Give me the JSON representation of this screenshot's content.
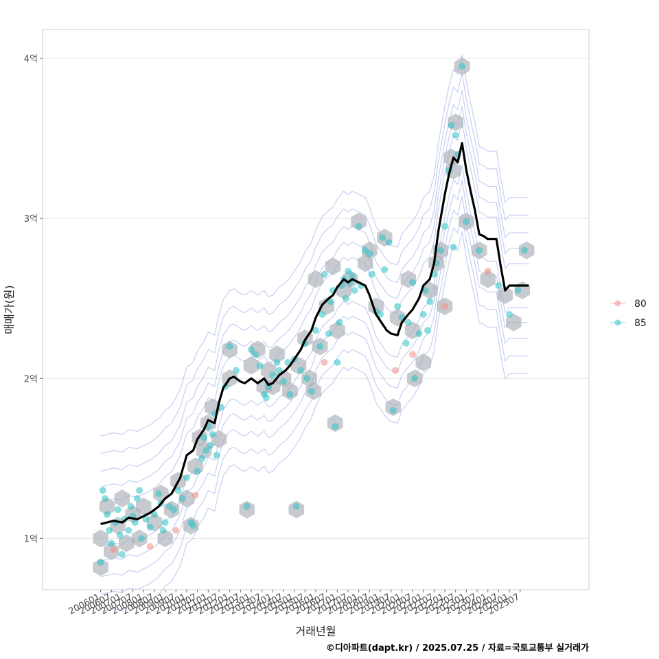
{
  "chart_data": {
    "type": "scatter",
    "xlabel": "거래년월",
    "ylabel": "매매가(원)",
    "caption": "©디아파트(dapt.kr) / 2025.07.25 / 자료=국토교통부 실거래가",
    "x_ticks": [
      "200601",
      "200607",
      "200701",
      "200707",
      "200801",
      "200807",
      "200901",
      "200907",
      "201001",
      "201007",
      "201101",
      "201107",
      "201201",
      "201207",
      "201301",
      "201307",
      "201401",
      "201407",
      "201501",
      "201507",
      "201601",
      "201607",
      "201701",
      "201707",
      "201801",
      "201807",
      "201901",
      "201907",
      "202001",
      "202007",
      "202101",
      "202107",
      "202201",
      "202207",
      "202301",
      "202307",
      "202401",
      "202407",
      "202501",
      "202507"
    ],
    "y_ticks": [
      {
        "value": 1,
        "label": "1억"
      },
      {
        "value": 2,
        "label": "2억"
      },
      {
        "value": 3,
        "label": "3억"
      },
      {
        "value": 4,
        "label": "4억"
      }
    ],
    "xlim": [
      2003.3,
      2028.7
    ],
    "ylim": [
      0.68,
      4.18
    ],
    "grid": true,
    "legend_position": "right",
    "colors": {
      "line": "#000000",
      "series_80": "#f28e86",
      "series_85": "#2ec4c7",
      "hex": "#a9afb6",
      "contour": "#97a7e6",
      "panel_border": "#cccccc",
      "grid": "#e5e5e5"
    },
    "series": [
      {
        "name": "80",
        "points": [
          [
            2006.6,
            0.93
          ],
          [
            2008.3,
            0.95
          ],
          [
            2009.5,
            1.05
          ],
          [
            2010.4,
            1.27
          ],
          [
            2016.4,
            2.1
          ],
          [
            2019.7,
            2.05
          ],
          [
            2020.5,
            2.15
          ],
          [
            2022.0,
            2.45
          ],
          [
            2024.0,
            2.67
          ]
        ]
      },
      {
        "name": "85",
        "points": [
          [
            2006.0,
            0.85
          ],
          [
            2006.1,
            1.3
          ],
          [
            2006.2,
            1.25
          ],
          [
            2006.3,
            1.15
          ],
          [
            2006.4,
            1.05
          ],
          [
            2006.5,
            0.97
          ],
          [
            2006.7,
            1.1
          ],
          [
            2006.8,
            1.18
          ],
          [
            2006.9,
            1.02
          ],
          [
            2007.0,
            0.9
          ],
          [
            2007.1,
            1.12
          ],
          [
            2007.3,
            1.05
          ],
          [
            2007.4,
            1.2
          ],
          [
            2007.5,
            1.14
          ],
          [
            2007.6,
            1.1
          ],
          [
            2007.7,
            1.25
          ],
          [
            2007.8,
            1.3
          ],
          [
            2007.9,
            1.0
          ],
          [
            2008.1,
            1.12
          ],
          [
            2008.3,
            1.07
          ],
          [
            2008.5,
            1.15
          ],
          [
            2008.7,
            1.28
          ],
          [
            2008.8,
            1.22
          ],
          [
            2008.9,
            1.05
          ],
          [
            2009.0,
            1.1
          ],
          [
            2009.2,
            1.2
          ],
          [
            2009.4,
            1.18
          ],
          [
            2009.6,
            1.3
          ],
          [
            2009.8,
            1.25
          ],
          [
            2010.0,
            1.38
          ],
          [
            2010.2,
            1.1
          ],
          [
            2010.3,
            1.08
          ],
          [
            2010.5,
            1.42
          ],
          [
            2010.7,
            1.5
          ],
          [
            2010.8,
            1.63
          ],
          [
            2010.9,
            1.55
          ],
          [
            2011.0,
            1.7
          ],
          [
            2011.1,
            1.58
          ],
          [
            2011.2,
            1.65
          ],
          [
            2011.3,
            1.78
          ],
          [
            2011.4,
            1.52
          ],
          [
            2011.6,
            1.82
          ],
          [
            2011.8,
            1.95
          ],
          [
            2012.0,
            2.2
          ],
          [
            2012.3,
            2.05
          ],
          [
            2012.8,
            1.2
          ],
          [
            2013.0,
            2.18
          ],
          [
            2013.2,
            2.15
          ],
          [
            2013.4,
            2.08
          ],
          [
            2013.6,
            1.9
          ],
          [
            2013.7,
            1.88
          ],
          [
            2013.8,
            1.95
          ],
          [
            2014.0,
            2.02
          ],
          [
            2014.2,
            2.1
          ],
          [
            2014.3,
            2.05
          ],
          [
            2014.5,
            1.98
          ],
          [
            2014.7,
            2.1
          ],
          [
            2014.8,
            1.9
          ],
          [
            2015.0,
            2.12
          ],
          [
            2015.1,
            1.2
          ],
          [
            2015.3,
            2.05
          ],
          [
            2015.5,
            2.22
          ],
          [
            2015.6,
            2.0
          ],
          [
            2015.8,
            1.92
          ],
          [
            2016.0,
            2.3
          ],
          [
            2016.2,
            2.2
          ],
          [
            2016.3,
            2.4
          ],
          [
            2016.4,
            2.65
          ],
          [
            2016.6,
            2.28
          ],
          [
            2016.7,
            2.48
          ],
          [
            2016.8,
            2.55
          ],
          [
            2016.9,
            1.7
          ],
          [
            2017.0,
            2.1
          ],
          [
            2017.1,
            2.35
          ],
          [
            2017.2,
            2.58
          ],
          [
            2017.3,
            2.62
          ],
          [
            2017.4,
            2.5
          ],
          [
            2017.5,
            2.67
          ],
          [
            2017.6,
            2.6
          ],
          [
            2017.7,
            2.64
          ],
          [
            2017.8,
            2.55
          ],
          [
            2018.0,
            2.95
          ],
          [
            2018.1,
            2.58
          ],
          [
            2018.3,
            2.8
          ],
          [
            2018.5,
            2.78
          ],
          [
            2018.6,
            2.65
          ],
          [
            2018.8,
            2.42
          ],
          [
            2019.0,
            2.4
          ],
          [
            2019.1,
            2.88
          ],
          [
            2019.2,
            2.68
          ],
          [
            2019.4,
            2.85
          ],
          [
            2019.6,
            1.8
          ],
          [
            2019.8,
            2.45
          ],
          [
            2020.0,
            2.38
          ],
          [
            2020.2,
            2.22
          ],
          [
            2020.3,
            2.35
          ],
          [
            2020.5,
            2.6
          ],
          [
            2020.6,
            2.0
          ],
          [
            2020.8,
            2.28
          ],
          [
            2021.0,
            2.4
          ],
          [
            2021.1,
            2.55
          ],
          [
            2021.2,
            2.3
          ],
          [
            2021.3,
            2.48
          ],
          [
            2021.5,
            2.65
          ],
          [
            2021.6,
            2.72
          ],
          [
            2021.8,
            2.8
          ],
          [
            2022.0,
            2.95
          ],
          [
            2022.2,
            3.3
          ],
          [
            2022.3,
            3.58
          ],
          [
            2022.4,
            2.82
          ],
          [
            2022.5,
            3.52
          ],
          [
            2022.6,
            3.4
          ],
          [
            2022.8,
            3.95
          ],
          [
            2023.0,
            2.98
          ],
          [
            2023.6,
            2.8
          ],
          [
            2024.5,
            2.58
          ],
          [
            2025.0,
            2.4
          ],
          [
            2025.4,
            2.55
          ],
          [
            2025.7,
            2.8
          ]
        ]
      }
    ],
    "moving_average": {
      "x": [
        2006.0,
        2006.3,
        2006.6,
        2007.0,
        2007.3,
        2007.7,
        2008.0,
        2008.3,
        2008.7,
        2009.0,
        2009.3,
        2009.7,
        2010.0,
        2010.3,
        2010.5,
        2010.8,
        2011.0,
        2011.3,
        2011.5,
        2011.7,
        2011.8,
        2012.0,
        2012.2,
        2012.5,
        2012.7,
        2013.0,
        2013.3,
        2013.6,
        2013.8,
        2014.0,
        2014.3,
        2014.6,
        2014.8,
        2015.0,
        2015.3,
        2015.5,
        2015.8,
        2016.0,
        2016.3,
        2016.6,
        2016.8,
        2017.0,
        2017.3,
        2017.5,
        2017.7,
        2018.0,
        2018.3,
        2018.5,
        2018.8,
        2019.0,
        2019.3,
        2019.5,
        2019.8,
        2020.0,
        2020.3,
        2020.5,
        2020.8,
        2021.0,
        2021.3,
        2021.5,
        2021.7,
        2022.0,
        2022.2,
        2022.4,
        2022.6,
        2022.8,
        2023.0,
        2023.2,
        2023.4,
        2023.6,
        2023.8,
        2024.0,
        2024.2,
        2024.4,
        2024.6,
        2024.8,
        2025.0,
        2025.2,
        2025.4,
        2025.6,
        2025.9
      ],
      "y": [
        1.09,
        1.1,
        1.11,
        1.1,
        1.13,
        1.12,
        1.14,
        1.16,
        1.2,
        1.25,
        1.28,
        1.38,
        1.52,
        1.55,
        1.62,
        1.68,
        1.74,
        1.72,
        1.85,
        1.94,
        1.96,
        2.0,
        2.01,
        1.98,
        1.97,
        2.0,
        1.97,
        2.0,
        1.96,
        1.97,
        2.02,
        2.05,
        2.08,
        2.12,
        2.18,
        2.24,
        2.3,
        2.38,
        2.46,
        2.5,
        2.52,
        2.57,
        2.62,
        2.6,
        2.62,
        2.6,
        2.58,
        2.52,
        2.4,
        2.36,
        2.3,
        2.28,
        2.27,
        2.35,
        2.4,
        2.43,
        2.5,
        2.58,
        2.62,
        2.72,
        2.92,
        3.15,
        3.28,
        3.38,
        3.35,
        3.47,
        3.3,
        3.17,
        3.05,
        2.9,
        2.89,
        2.87,
        2.87,
        2.87,
        2.7,
        2.55,
        2.58,
        2.58,
        2.58,
        2.58,
        2.58
      ]
    },
    "hexbins": [
      [
        2006.0,
        0.82
      ],
      [
        2006.0,
        1.0
      ],
      [
        2006.3,
        1.2
      ],
      [
        2006.5,
        0.92
      ],
      [
        2006.8,
        1.08
      ],
      [
        2007.0,
        1.25
      ],
      [
        2007.2,
        0.97
      ],
      [
        2007.5,
        1.15
      ],
      [
        2007.8,
        1.0
      ],
      [
        2008.0,
        1.2
      ],
      [
        2008.5,
        1.1
      ],
      [
        2008.8,
        1.28
      ],
      [
        2009.0,
        1.0
      ],
      [
        2009.3,
        1.18
      ],
      [
        2009.6,
        1.36
      ],
      [
        2010.0,
        1.25
      ],
      [
        2010.2,
        1.08
      ],
      [
        2010.4,
        1.45
      ],
      [
        2010.6,
        1.63
      ],
      [
        2010.8,
        1.55
      ],
      [
        2011.0,
        1.72
      ],
      [
        2011.2,
        1.82
      ],
      [
        2011.5,
        1.62
      ],
      [
        2012.0,
        2.0
      ],
      [
        2012.0,
        2.18
      ],
      [
        2012.8,
        1.18
      ],
      [
        2013.0,
        2.08
      ],
      [
        2013.3,
        2.18
      ],
      [
        2013.6,
        1.95
      ],
      [
        2013.8,
        2.05
      ],
      [
        2014.0,
        1.95
      ],
      [
        2014.2,
        2.15
      ],
      [
        2014.5,
        2.0
      ],
      [
        2014.8,
        1.92
      ],
      [
        2015.1,
        1.18
      ],
      [
        2015.2,
        2.08
      ],
      [
        2015.5,
        2.25
      ],
      [
        2015.7,
        2.0
      ],
      [
        2015.9,
        1.92
      ],
      [
        2016.0,
        2.62
      ],
      [
        2016.2,
        2.2
      ],
      [
        2016.5,
        2.45
      ],
      [
        2016.8,
        2.7
      ],
      [
        2016.9,
        1.72
      ],
      [
        2017.0,
        2.3
      ],
      [
        2017.3,
        2.55
      ],
      [
        2017.6,
        2.62
      ],
      [
        2018.0,
        2.98
      ],
      [
        2018.3,
        2.72
      ],
      [
        2018.5,
        2.8
      ],
      [
        2018.8,
        2.45
      ],
      [
        2019.2,
        2.88
      ],
      [
        2019.6,
        1.82
      ],
      [
        2019.8,
        2.38
      ],
      [
        2020.3,
        2.62
      ],
      [
        2020.5,
        2.3
      ],
      [
        2020.6,
        2.0
      ],
      [
        2021.0,
        2.1
      ],
      [
        2021.3,
        2.55
      ],
      [
        2021.6,
        2.72
      ],
      [
        2021.8,
        2.8
      ],
      [
        2022.0,
        2.45
      ],
      [
        2022.3,
        3.38
      ],
      [
        2022.4,
        3.3
      ],
      [
        2022.5,
        3.6
      ],
      [
        2022.8,
        3.95
      ],
      [
        2023.0,
        2.98
      ],
      [
        2023.6,
        2.8
      ],
      [
        2024.0,
        2.62
      ],
      [
        2024.8,
        2.52
      ],
      [
        2025.2,
        2.35
      ],
      [
        2025.6,
        2.55
      ],
      [
        2025.8,
        2.8
      ]
    ]
  },
  "legend": {
    "items": [
      {
        "label": "80",
        "color": "#f28e86"
      },
      {
        "label": "85",
        "color": "#2ec4c7"
      }
    ]
  }
}
